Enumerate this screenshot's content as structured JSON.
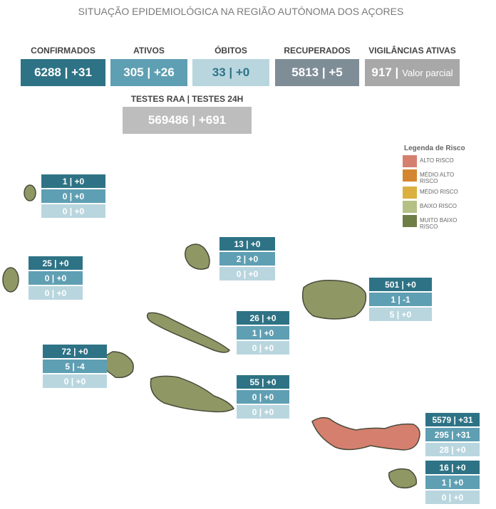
{
  "title": "SITUAÇÃO EPIDEMIOLÓGICA NA REGIÃO AUTÓNOMA DOS AÇORES",
  "kpis": [
    {
      "label": "CONFIRMADOS",
      "value": "6288 | +31",
      "color": "#2e7385",
      "text_color": "#ffffff"
    },
    {
      "label": "ATIVOS",
      "value": "305 | +26",
      "color": "#5f9fb3",
      "text_color": "#ffffff"
    },
    {
      "label": "ÓBITOS",
      "value": "33 | +0",
      "color": "#b9d6df",
      "text_color": "#2e7385"
    },
    {
      "label": "RECUPERADOS",
      "value": "5813 | +5",
      "color": "#7f8d97",
      "text_color": "#ffffff"
    },
    {
      "label": "VIGILÂNCIAS ATIVAS",
      "value": "917 |",
      "note": "Valor parcial",
      "color": "#a8a8a8",
      "text_color": "#ffffff"
    }
  ],
  "tests": {
    "label": "TESTES RAA | TESTES 24H",
    "value": "569486 | +691",
    "color": "#bdbdbd"
  },
  "legend": {
    "title": "Legenda de Risco",
    "items": [
      {
        "label": "ALTO RISCO",
        "color": "#d5806f"
      },
      {
        "label": "MÉDIO ALTO RISCO",
        "color": "#d3862f"
      },
      {
        "label": "MÉDIO RISCO",
        "color": "#dbb040"
      },
      {
        "label": "BAIXO RISCO",
        "color": "#b4c084"
      },
      {
        "label": "MUITO BAIXO RISCO",
        "color": "#6f7d47"
      }
    ]
  },
  "islands": [
    {
      "rows": [
        "1 | +0",
        "0 | +0",
        "0 | +0"
      ]
    },
    {
      "rows": [
        "25 | +0",
        "0 | +0",
        "0 | +0"
      ]
    },
    {
      "rows": [
        "13 | +0",
        "2 | +0",
        "0 | +0"
      ]
    },
    {
      "rows": [
        "501 | +0",
        "1 | -1",
        "5 | +0"
      ]
    },
    {
      "rows": [
        "26 | +0",
        "1 | +0",
        "0 | +0"
      ]
    },
    {
      "rows": [
        "72 | +0",
        "5 | -4",
        "0 | +0"
      ]
    },
    {
      "rows": [
        "55 | +0",
        "0 | +0",
        "0 | +0"
      ]
    },
    {
      "rows": [
        "5579 | +31",
        "295 | +31",
        "28 | +0"
      ]
    },
    {
      "rows": [
        "16 | +0",
        "1 | +0",
        "0 | +0"
      ]
    }
  ],
  "row_colors": [
    "#2e7385",
    "#5f9fb3",
    "#b9d6df"
  ]
}
